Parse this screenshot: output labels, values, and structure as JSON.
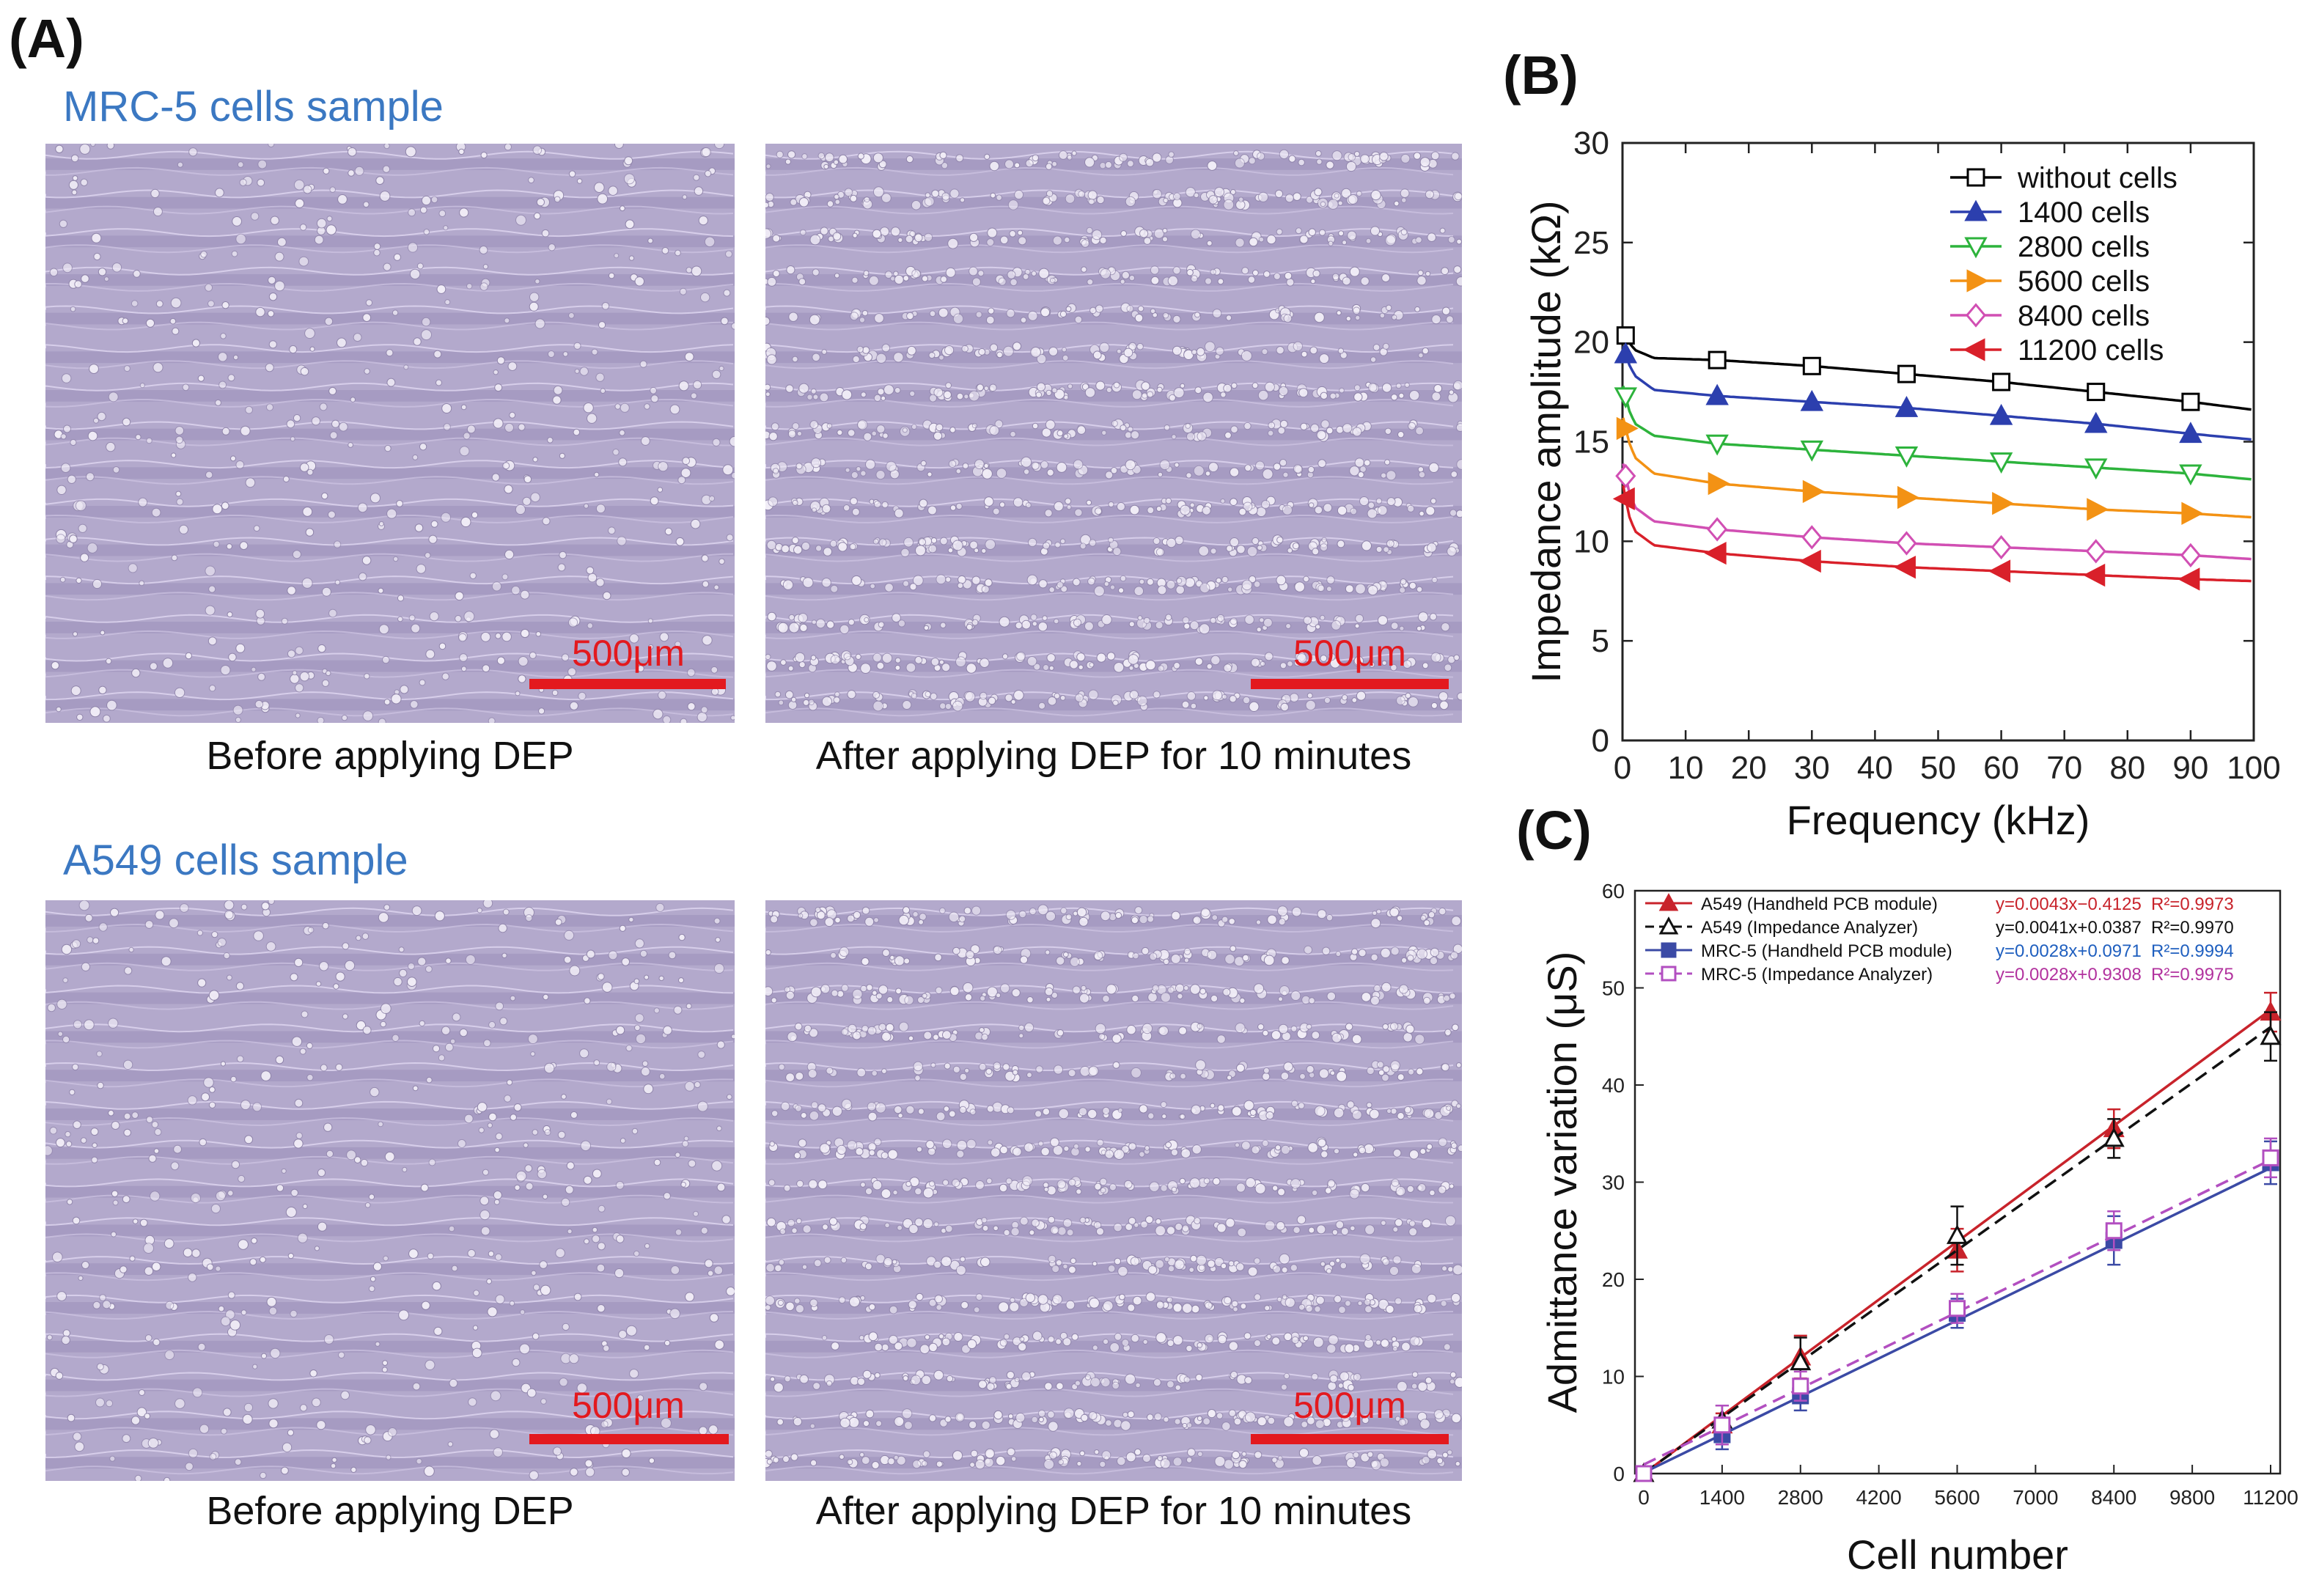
{
  "panel_a": {
    "label": "(A)",
    "samples": [
      {
        "title": "MRC-5 cells sample",
        "images": [
          {
            "caption": "Before applying DEP",
            "scale": "500μm"
          },
          {
            "caption": "After applying DEP for 10 minutes",
            "scale": "500μm"
          }
        ]
      },
      {
        "title": "A549 cells sample",
        "images": [
          {
            "caption": "Before applying DEP",
            "scale": "500μm"
          },
          {
            "caption": "After applying DEP for 10 minutes",
            "scale": "500μm"
          }
        ]
      }
    ]
  },
  "panel_b": {
    "label": "(B)"
  },
  "panel_c": {
    "label": "(C)"
  },
  "chart_data": [
    {
      "id": "B",
      "type": "line",
      "title": "",
      "xlabel": "Frequency (kHz)",
      "ylabel": "Impedance amplitude (kΩ)",
      "xlim": [
        0,
        100
      ],
      "ylim": [
        0,
        30
      ],
      "xticks": [
        0,
        10,
        20,
        30,
        40,
        50,
        60,
        70,
        80,
        90,
        100
      ],
      "yticks": [
        0,
        5,
        10,
        15,
        20,
        25,
        30
      ],
      "legend_position": "top-right",
      "x": [
        0.1,
        1,
        2,
        5,
        15,
        30,
        45,
        60,
        75,
        90,
        100
      ],
      "marker_x": [
        0.5,
        15,
        30,
        45,
        60,
        75,
        90
      ],
      "series": [
        {
          "name": "without cells",
          "color": "#000000",
          "marker": "square-open",
          "values": [
            20.6,
            20.0,
            19.6,
            19.2,
            19.1,
            18.8,
            18.4,
            18.0,
            17.5,
            17.0,
            16.6
          ]
        },
        {
          "name": "1400 cells",
          "color": "#2c3fae",
          "marker": "triangle-up-filled",
          "values": [
            19.8,
            18.9,
            18.3,
            17.6,
            17.3,
            17.0,
            16.7,
            16.3,
            15.9,
            15.4,
            15.1
          ]
        },
        {
          "name": "2800 cells",
          "color": "#2db33c",
          "marker": "triangle-down-open",
          "values": [
            17.8,
            16.6,
            15.9,
            15.3,
            14.9,
            14.6,
            14.3,
            14.0,
            13.7,
            13.4,
            13.1
          ]
        },
        {
          "name": "5600 cells",
          "color": "#f39214",
          "marker": "triangle-right-filled",
          "values": [
            16.2,
            15.0,
            14.2,
            13.4,
            12.9,
            12.5,
            12.2,
            11.9,
            11.6,
            11.4,
            11.2
          ]
        },
        {
          "name": "8400 cells",
          "color": "#d14fb3",
          "marker": "diamond-open",
          "values": [
            13.9,
            12.5,
            11.7,
            11.0,
            10.6,
            10.2,
            9.9,
            9.7,
            9.5,
            9.3,
            9.1
          ]
        },
        {
          "name": "11200 cells",
          "color": "#d9202a",
          "marker": "triangle-left-filled",
          "values": [
            12.8,
            11.3,
            10.5,
            9.8,
            9.4,
            9.0,
            8.7,
            8.5,
            8.3,
            8.1,
            8.0
          ]
        }
      ]
    },
    {
      "id": "C",
      "type": "line",
      "title": "",
      "xlabel": "Cell number",
      "ylabel": "Admittance variation (μS)",
      "xlim": [
        0,
        11200
      ],
      "ylim": [
        0,
        60
      ],
      "xticks": [
        0,
        1400,
        2800,
        4200,
        5600,
        7000,
        8400,
        9800,
        11200
      ],
      "yticks": [
        0,
        10,
        20,
        30,
        40,
        50,
        60
      ],
      "legend_position": "top-left",
      "x": [
        0,
        1400,
        2800,
        5600,
        8400,
        11200
      ],
      "series": [
        {
          "name": "A549 (Handheld PCB module)",
          "equation": "y=0.0043x−0.4125",
          "r2": "R²=0.9973",
          "color": "#c8232b",
          "eq_color": "#c8232b",
          "dash": "solid",
          "marker": "triangle-filled",
          "values": [
            0,
            5,
            12,
            23,
            35.5,
            47.5
          ],
          "errors": [
            0.5,
            1.2,
            2.2,
            2.2,
            2.0,
            2.0
          ],
          "fit": [
            0.0043,
            -0.4125
          ]
        },
        {
          "name": "A549 (Impedance Analyzer)",
          "equation": "y=0.0041x+0.0387",
          "r2": "R²=0.9970",
          "color": "#111111",
          "eq_color": "#111111",
          "dash": "dashed",
          "marker": "triangle-open",
          "values": [
            0,
            5.5,
            11.5,
            24.5,
            34.5,
            45
          ],
          "errors": [
            0.5,
            1.5,
            2.5,
            3.0,
            2.0,
            2.5
          ],
          "fit": [
            0.0041,
            0.0387
          ]
        },
        {
          "name": "MRC-5 (Handheld PCB module)",
          "equation": "y=0.0028x+0.0971",
          "r2": "R²=0.9994",
          "color": "#3b4aa5",
          "eq_color": "#1f5fbf",
          "dash": "solid",
          "marker": "square-filled",
          "values": [
            0,
            4,
            8,
            16.5,
            24,
            32
          ],
          "errors": [
            0.4,
            1.5,
            1.5,
            1.5,
            2.5,
            2.2
          ],
          "fit": [
            0.0028,
            0.0971
          ]
        },
        {
          "name": "MRC-5 (Impedance Analyzer)",
          "equation": "y=0.0028x+0.9308",
          "r2": "R²=0.9975",
          "color": "#b24fc0",
          "eq_color": "#b2329e",
          "dash": "dashed",
          "marker": "square-open",
          "values": [
            0,
            5,
            9,
            17,
            25,
            32.5
          ],
          "errors": [
            0.4,
            2.0,
            1.5,
            1.5,
            2.0,
            2.0
          ],
          "fit": [
            0.0028,
            0.9308
          ]
        }
      ]
    }
  ]
}
